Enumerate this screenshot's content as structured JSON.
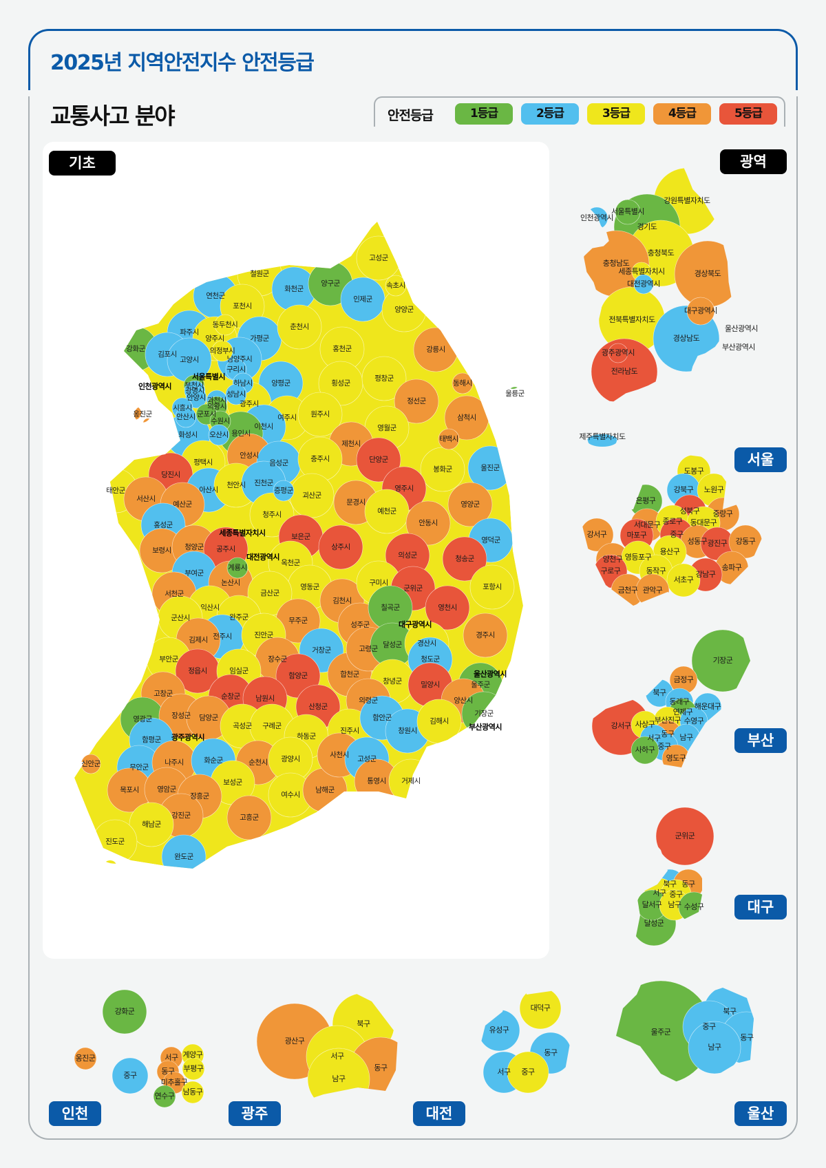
{
  "header": {
    "title": "2025년 지역안전지수 안전등급",
    "subtitle": "교통사고 분야"
  },
  "legend": {
    "label": "안전등급",
    "grades": [
      {
        "label": "1등급",
        "color": "#6ab744"
      },
      {
        "label": "2등급",
        "color": "#52bfee"
      },
      {
        "label": "3등급",
        "color": "#efe61c"
      },
      {
        "label": "4등급",
        "color": "#f09638"
      },
      {
        "label": "5등급",
        "color": "#e8553a"
      }
    ]
  },
  "panels": {
    "gicho": {
      "tag": "기초",
      "metro_labels": [
        "서울특별시",
        "인천광역시",
        "세종특별자치시",
        "대전광역시",
        "대구광역시",
        "울산광역시",
        "광주광역시",
        "부산광역시"
      ],
      "regions": [
        {
          "name": "철원군",
          "grade": 3
        },
        {
          "name": "화천군",
          "grade": 2
        },
        {
          "name": "연천군",
          "grade": 2
        },
        {
          "name": "포천시",
          "grade": 3
        },
        {
          "name": "동두천시",
          "grade": 3
        },
        {
          "name": "파주시",
          "grade": 2
        },
        {
          "name": "양주시",
          "grade": 3
        },
        {
          "name": "가평군",
          "grade": 2
        },
        {
          "name": "춘천시",
          "grade": 3
        },
        {
          "name": "강화군",
          "grade": 1
        },
        {
          "name": "김포시",
          "grade": 2
        },
        {
          "name": "고양시",
          "grade": 2
        },
        {
          "name": "의정부시",
          "grade": 3
        },
        {
          "name": "남양주시",
          "grade": 2
        },
        {
          "name": "구리시",
          "grade": 2
        },
        {
          "name": "부천시",
          "grade": 1
        },
        {
          "name": "하남시",
          "grade": 2
        },
        {
          "name": "양평군",
          "grade": 2
        },
        {
          "name": "광명시",
          "grade": 2
        },
        {
          "name": "안양시",
          "grade": 2
        },
        {
          "name": "과천시",
          "grade": 2
        },
        {
          "name": "성남시",
          "grade": 2
        },
        {
          "name": "광주시",
          "grade": 3
        },
        {
          "name": "의왕시",
          "grade": 1
        },
        {
          "name": "시흥시",
          "grade": 2
        },
        {
          "name": "옹진군",
          "grade": 4
        },
        {
          "name": "군포시",
          "grade": 1
        },
        {
          "name": "안산시",
          "grade": 2
        },
        {
          "name": "수원시",
          "grade": 1
        },
        {
          "name": "여주시",
          "grade": 3
        },
        {
          "name": "이천시",
          "grade": 2
        },
        {
          "name": "화성시",
          "grade": 2
        },
        {
          "name": "오산시",
          "grade": 2
        },
        {
          "name": "용인시",
          "grade": 1
        },
        {
          "name": "안성시",
          "grade": 4
        },
        {
          "name": "평택시",
          "grade": 3
        },
        {
          "name": "음성군",
          "grade": 2
        },
        {
          "name": "당진시",
          "grade": 5
        },
        {
          "name": "고성군",
          "grade": 3
        },
        {
          "name": "양구군",
          "grade": 1
        },
        {
          "name": "속초시",
          "grade": 3
        },
        {
          "name": "인제군",
          "grade": 2
        },
        {
          "name": "양양군",
          "grade": 3
        },
        {
          "name": "홍천군",
          "grade": 3
        },
        {
          "name": "강릉시",
          "grade": 4
        },
        {
          "name": "횡성군",
          "grade": 3
        },
        {
          "name": "평창군",
          "grade": 3
        },
        {
          "name": "동해시",
          "grade": 4
        },
        {
          "name": "울릉군",
          "grade": 1
        },
        {
          "name": "정선군",
          "grade": 4
        },
        {
          "name": "원주시",
          "grade": 3
        },
        {
          "name": "삼척시",
          "grade": 4
        },
        {
          "name": "영월군",
          "grade": 3
        },
        {
          "name": "태백시",
          "grade": 4
        },
        {
          "name": "제천시",
          "grade": 4
        },
        {
          "name": "단양군",
          "grade": 5
        },
        {
          "name": "충주시",
          "grade": 3
        },
        {
          "name": "봉화군",
          "grade": 3
        },
        {
          "name": "울진군",
          "grade": 2
        },
        {
          "name": "태안군",
          "grade": 3
        },
        {
          "name": "서산시",
          "grade": 4
        },
        {
          "name": "아산시",
          "grade": 2
        },
        {
          "name": "천안시",
          "grade": 3
        },
        {
          "name": "진천군",
          "grade": 2
        },
        {
          "name": "증평군",
          "grade": 2
        },
        {
          "name": "괴산군",
          "grade": 3
        },
        {
          "name": "예산군",
          "grade": 4
        },
        {
          "name": "문경시",
          "grade": 4
        },
        {
          "name": "청주시",
          "grade": 3
        },
        {
          "name": "홍성군",
          "grade": 2
        },
        {
          "name": "보은군",
          "grade": 5
        },
        {
          "name": "상주시",
          "grade": 5
        },
        {
          "name": "보령시",
          "grade": 4
        },
        {
          "name": "청양군",
          "grade": 4
        },
        {
          "name": "공주시",
          "grade": 5
        },
        {
          "name": "옥천군",
          "grade": 3
        },
        {
          "name": "계룡시",
          "grade": 1
        },
        {
          "name": "부여군",
          "grade": 2
        },
        {
          "name": "논산시",
          "grade": 4
        },
        {
          "name": "영동군",
          "grade": 3
        },
        {
          "name": "금산군",
          "grade": 3
        },
        {
          "name": "서천군",
          "grade": 4
        },
        {
          "name": "김천시",
          "grade": 4
        },
        {
          "name": "익산시",
          "grade": 3
        },
        {
          "name": "군산시",
          "grade": 3
        },
        {
          "name": "완주군",
          "grade": 3
        },
        {
          "name": "무주군",
          "grade": 4
        },
        {
          "name": "성주군",
          "grade": 4
        },
        {
          "name": "전주시",
          "grade": 2
        },
        {
          "name": "진안군",
          "grade": 3
        },
        {
          "name": "김제시",
          "grade": 4
        },
        {
          "name": "거창군",
          "grade": 2
        },
        {
          "name": "부안군",
          "grade": 3
        },
        {
          "name": "장수군",
          "grade": 4
        },
        {
          "name": "정읍시",
          "grade": 5
        },
        {
          "name": "임실군",
          "grade": 3
        },
        {
          "name": "함양군",
          "grade": 5
        },
        {
          "name": "합천군",
          "grade": 4
        },
        {
          "name": "고창군",
          "grade": 4
        },
        {
          "name": "순창군",
          "grade": 5
        },
        {
          "name": "남원시",
          "grade": 5
        },
        {
          "name": "산청군",
          "grade": 5
        },
        {
          "name": "영주시",
          "grade": 5
        },
        {
          "name": "영양군",
          "grade": 4
        },
        {
          "name": "예천군",
          "grade": 3
        },
        {
          "name": "안동시",
          "grade": 4
        },
        {
          "name": "영덕군",
          "grade": 2
        },
        {
          "name": "의성군",
          "grade": 5
        },
        {
          "name": "청송군",
          "grade": 5
        },
        {
          "name": "구미시",
          "grade": 3
        },
        {
          "name": "군위군",
          "grade": 5
        },
        {
          "name": "포항시",
          "grade": 3
        },
        {
          "name": "칠곡군",
          "grade": 1
        },
        {
          "name": "영천시",
          "grade": 5
        },
        {
          "name": "경주시",
          "grade": 4
        },
        {
          "name": "고령군",
          "grade": 4
        },
        {
          "name": "달성군",
          "grade": 1
        },
        {
          "name": "경산시",
          "grade": 3
        },
        {
          "name": "청도군",
          "grade": 2
        },
        {
          "name": "울주군",
          "grade": 1
        },
        {
          "name": "창녕군",
          "grade": 3
        },
        {
          "name": "밀양시",
          "grade": 5
        },
        {
          "name": "양산시",
          "grade": 4
        },
        {
          "name": "의령군",
          "grade": 4
        },
        {
          "name": "기장군",
          "grade": 1
        },
        {
          "name": "영광군",
          "grade": 1
        },
        {
          "name": "장성군",
          "grade": 4
        },
        {
          "name": "담양군",
          "grade": 4
        },
        {
          "name": "곡성군",
          "grade": 3
        },
        {
          "name": "구례군",
          "grade": 3
        },
        {
          "name": "함평군",
          "grade": 2
        },
        {
          "name": "하동군",
          "grade": 3
        },
        {
          "name": "신안군",
          "grade": 4
        },
        {
          "name": "무안군",
          "grade": 2
        },
        {
          "name": "나주시",
          "grade": 4
        },
        {
          "name": "화순군",
          "grade": 2
        },
        {
          "name": "순천시",
          "grade": 4
        },
        {
          "name": "광양시",
          "grade": 3
        },
        {
          "name": "보성군",
          "grade": 3
        },
        {
          "name": "목포시",
          "grade": 4
        },
        {
          "name": "영암군",
          "grade": 4
        },
        {
          "name": "장흥군",
          "grade": 4
        },
        {
          "name": "여수시",
          "grade": 3
        },
        {
          "name": "남해군",
          "grade": 4
        },
        {
          "name": "강진군",
          "grade": 4
        },
        {
          "name": "고흥군",
          "grade": 4
        },
        {
          "name": "해남군",
          "grade": 3
        },
        {
          "name": "진도군",
          "grade": 3
        },
        {
          "name": "완도군",
          "grade": 2
        },
        {
          "name": "진주시",
          "grade": 3
        },
        {
          "name": "함안군",
          "grade": 2
        },
        {
          "name": "창원시",
          "grade": 2
        },
        {
          "name": "김해시",
          "grade": 3
        },
        {
          "name": "사천시",
          "grade": 4
        },
        {
          "name": "고성군",
          "grade": 2
        },
        {
          "name": "통영시",
          "grade": 4
        },
        {
          "name": "거제시",
          "grade": 3
        }
      ]
    },
    "gwangyeok": {
      "tag": "광역",
      "regions": [
        {
          "name": "강원특별자치도",
          "grade": 3
        },
        {
          "name": "서울특별시",
          "grade": 1
        },
        {
          "name": "인천광역시",
          "grade": 2
        },
        {
          "name": "경기도",
          "grade": 1
        },
        {
          "name": "충청북도",
          "grade": 3
        },
        {
          "name": "충청남도",
          "grade": 4
        },
        {
          "name": "세종특별자치시",
          "grade": 3
        },
        {
          "name": "경상북도",
          "grade": 4
        },
        {
          "name": "대전광역시",
          "grade": 2
        },
        {
          "name": "대구광역시",
          "grade": 4
        },
        {
          "name": "전북특별자치도",
          "grade": 3
        },
        {
          "name": "울산광역시",
          "grade": 5
        },
        {
          "name": "경상남도",
          "grade": 2
        },
        {
          "name": "부산광역시",
          "grade": 3
        },
        {
          "name": "광주광역시",
          "grade": 5
        },
        {
          "name": "전라남도",
          "grade": 5
        },
        {
          "name": "제주특별자치도",
          "grade": 2
        }
      ]
    },
    "seoul": {
      "tag": "서울",
      "regions": [
        {
          "name": "도봉구",
          "grade": 3
        },
        {
          "name": "강북구",
          "grade": 2
        },
        {
          "name": "노원구",
          "grade": 3
        },
        {
          "name": "은평구",
          "grade": 1
        },
        {
          "name": "성북구",
          "grade": 5
        },
        {
          "name": "중랑구",
          "grade": 4
        },
        {
          "name": "서대문구",
          "grade": 4
        },
        {
          "name": "종로구",
          "grade": 3
        },
        {
          "name": "동대문구",
          "grade": 3
        },
        {
          "name": "강서구",
          "grade": 4
        },
        {
          "name": "마포구",
          "grade": 5
        },
        {
          "name": "중구",
          "grade": 5
        },
        {
          "name": "성동구",
          "grade": 4
        },
        {
          "name": "광진구",
          "grade": 5
        },
        {
          "name": "강동구",
          "grade": 4
        },
        {
          "name": "용산구",
          "grade": 3
        },
        {
          "name": "양천구",
          "grade": 4
        },
        {
          "name": "영등포구",
          "grade": 3
        },
        {
          "name": "송파구",
          "grade": 4
        },
        {
          "name": "구로구",
          "grade": 5
        },
        {
          "name": "동작구",
          "grade": 3
        },
        {
          "name": "강남구",
          "grade": 5
        },
        {
          "name": "서초구",
          "grade": 3
        },
        {
          "name": "금천구",
          "grade": 4
        },
        {
          "name": "관악구",
          "grade": 4
        }
      ]
    },
    "busan": {
      "tag": "부산",
      "regions": [
        {
          "name": "기장군",
          "grade": 1
        },
        {
          "name": "금정구",
          "grade": 4
        },
        {
          "name": "북구",
          "grade": 2
        },
        {
          "name": "동래구",
          "grade": 2
        },
        {
          "name": "해운대구",
          "grade": 2
        },
        {
          "name": "연제구",
          "grade": 1
        },
        {
          "name": "부산진구",
          "grade": 3
        },
        {
          "name": "수영구",
          "grade": 2
        },
        {
          "name": "강서구",
          "grade": 5
        },
        {
          "name": "사상구",
          "grade": 3
        },
        {
          "name": "동구",
          "grade": 4
        },
        {
          "name": "서구",
          "grade": 2
        },
        {
          "name": "남구",
          "grade": 2
        },
        {
          "name": "중구",
          "grade": 2
        },
        {
          "name": "사하구",
          "grade": 1
        },
        {
          "name": "영도구",
          "grade": 4
        }
      ]
    },
    "daegu": {
      "tag": "대구",
      "regions": [
        {
          "name": "군위군",
          "grade": 5
        },
        {
          "name": "북구",
          "grade": 2
        },
        {
          "name": "동구",
          "grade": 4
        },
        {
          "name": "서구",
          "grade": 3
        },
        {
          "name": "중구",
          "grade": 3
        },
        {
          "name": "달서구",
          "grade": 1
        },
        {
          "name": "남구",
          "grade": 3
        },
        {
          "name": "수성구",
          "grade": 1
        },
        {
          "name": "달성군",
          "grade": 1
        }
      ]
    },
    "incheon": {
      "tag": "인천",
      "regions": [
        {
          "name": "강화군",
          "grade": 1
        },
        {
          "name": "옹진군",
          "grade": 4
        },
        {
          "name": "서구",
          "grade": 4
        },
        {
          "name": "계양구",
          "grade": 3
        },
        {
          "name": "중구",
          "grade": 2
        },
        {
          "name": "동구",
          "grade": 4
        },
        {
          "name": "부평구",
          "grade": 3
        },
        {
          "name": "미추홀구",
          "grade": 4
        },
        {
          "name": "남동구",
          "grade": 3
        },
        {
          "name": "연수구",
          "grade": 1
        }
      ]
    },
    "gwangju": {
      "tag": "광주",
      "regions": [
        {
          "name": "광산구",
          "grade": 4
        },
        {
          "name": "북구",
          "grade": 3
        },
        {
          "name": "서구",
          "grade": 3
        },
        {
          "name": "동구",
          "grade": 4
        },
        {
          "name": "남구",
          "grade": 3
        }
      ]
    },
    "daejeon": {
      "tag": "대전",
      "regions": [
        {
          "name": "대덕구",
          "grade": 3
        },
        {
          "name": "유성구",
          "grade": 2
        },
        {
          "name": "동구",
          "grade": 2
        },
        {
          "name": "서구",
          "grade": 2
        },
        {
          "name": "중구",
          "grade": 3
        }
      ]
    },
    "ulsan": {
      "tag": "울산",
      "regions": [
        {
          "name": "울주군",
          "grade": 1
        },
        {
          "name": "북구",
          "grade": 2
        },
        {
          "name": "중구",
          "grade": 2
        },
        {
          "name": "동구",
          "grade": 2
        },
        {
          "name": "남구",
          "grade": 2
        }
      ]
    }
  }
}
